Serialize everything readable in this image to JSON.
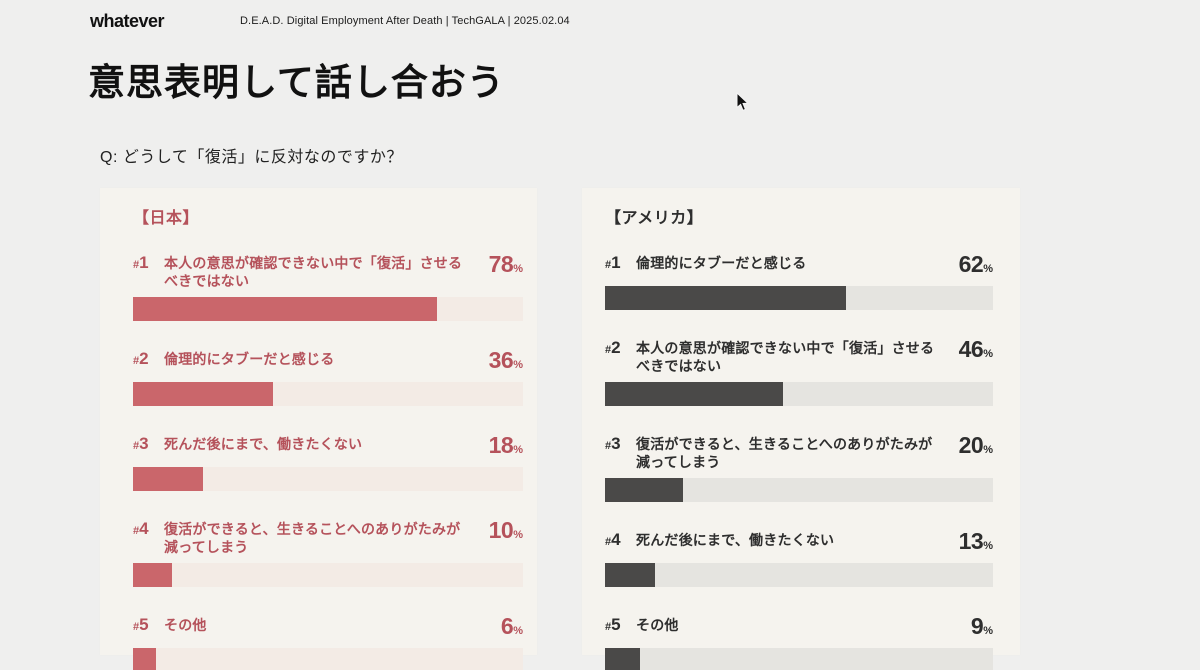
{
  "header": {
    "logo": "whatever",
    "subtitle": "D.E.A.D. Digital Employment After Death |  TechGALA |  2025.02.04"
  },
  "title": "意思表明して話し合おう",
  "question": "Q: どうして「復活」に反対なのですか？",
  "chart_data": [
    {
      "type": "bar",
      "orientation": "horizontal",
      "title": "【日本】",
      "unit": "%",
      "xlim": [
        0,
        100
      ],
      "grid": false,
      "ranks": [
        "#1",
        "#2",
        "#3",
        "#4",
        "#5"
      ],
      "categories": [
        "本人の意思が確認できない中で「復活」させるべきではない",
        "倫理的にタブーだと感じる",
        "死んだ後にまで、働きたくない",
        "復活ができると、生きることへのありがたみが減ってしまう",
        "その他"
      ],
      "values": [
        78,
        36,
        18,
        10,
        6
      ],
      "colors": {
        "accent": "#b5525b",
        "bar": "#ca666b",
        "track": "#f3ebe5",
        "panel_bg": "#f5f3ee"
      }
    },
    {
      "type": "bar",
      "orientation": "horizontal",
      "title": "【アメリカ】",
      "unit": "%",
      "xlim": [
        0,
        100
      ],
      "grid": false,
      "ranks": [
        "#1",
        "#2",
        "#3",
        "#4",
        "#5"
      ],
      "categories": [
        "倫理的にタブーだと感じる",
        "本人の意思が確認できない中で「復活」させるべきではない",
        "復活ができると、生きることへのありがたみが減ってしまう",
        "死んだ後にまで、働きたくない",
        "その他"
      ],
      "values": [
        62,
        46,
        20,
        13,
        9
      ],
      "colors": {
        "accent": "#2e2e2e",
        "bar": "#4a4948",
        "track": "#e5e4e0",
        "panel_bg": "#f5f3ee"
      }
    }
  ]
}
